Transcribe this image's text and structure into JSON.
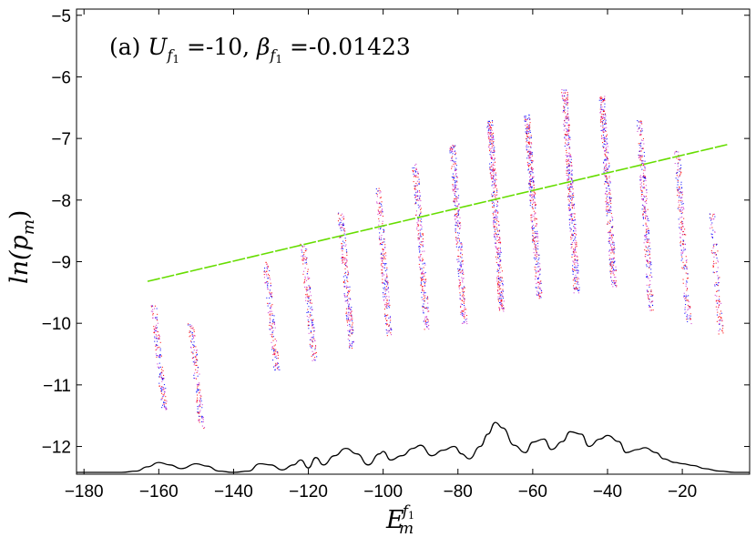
{
  "chart_data": {
    "type": "scatter",
    "annotation": {
      "prefix": "(a) ",
      "u_symbol": "U",
      "beta_symbol": "β",
      "subscript": "f",
      "sub_index": "1",
      "u_value": " =-10, ",
      "beta_value": " =-0.01423"
    },
    "xlabel": {
      "base": "E",
      "sub": "m",
      "sup_base": "f",
      "sup_index": "1"
    },
    "ylabel": "ln(p",
    "ylabel_sub": "m",
    "ylabel_close": ")",
    "xlim": [
      -182,
      -2
    ],
    "ylim": [
      -12.45,
      -4.9
    ],
    "xticks": [
      -180,
      -160,
      -140,
      -120,
      -100,
      -80,
      -60,
      -40,
      -20
    ],
    "yticks": [
      -5,
      -6,
      -7,
      -8,
      -9,
      -10,
      -11,
      -12
    ],
    "grid": false,
    "colors": {
      "red": "#ff0000",
      "blue": "#0000ff",
      "magenta": "#cc33cc",
      "fit_line": "#66dd00",
      "envelope": "#000000"
    },
    "scatter_bands": [
      {
        "x_center": -160,
        "y_top": -9.7,
        "y_bottom": -11.4,
        "slope_dx": 3.0,
        "density": 160
      },
      {
        "x_center": -150,
        "y_top": -10.0,
        "y_bottom": -11.7,
        "slope_dx": 3.0,
        "density": 140
      },
      {
        "x_center": -130,
        "y_top": -9.0,
        "y_bottom": -10.8,
        "slope_dx": 3.0,
        "density": 150
      },
      {
        "x_center": -120,
        "y_top": -8.7,
        "y_bottom": -10.6,
        "slope_dx": 3.0,
        "density": 170
      },
      {
        "x_center": -110,
        "y_top": -8.2,
        "y_bottom": -10.4,
        "slope_dx": 3.0,
        "density": 220
      },
      {
        "x_center": -100,
        "y_top": -7.8,
        "y_bottom": -10.2,
        "slope_dx": 3.0,
        "density": 220
      },
      {
        "x_center": -90,
        "y_top": -7.4,
        "y_bottom": -10.1,
        "slope_dx": 3.2,
        "density": 260
      },
      {
        "x_center": -80,
        "y_top": -7.1,
        "y_bottom": -10.0,
        "slope_dx": 3.2,
        "density": 300
      },
      {
        "x_center": -70,
        "y_top": -6.7,
        "y_bottom": -9.8,
        "slope_dx": 3.3,
        "density": 420
      },
      {
        "x_center": -60,
        "y_top": -6.6,
        "y_bottom": -9.6,
        "slope_dx": 3.3,
        "density": 380
      },
      {
        "x_center": -50,
        "y_top": -6.2,
        "y_bottom": -9.5,
        "slope_dx": 3.3,
        "density": 420
      },
      {
        "x_center": -40,
        "y_top": -6.3,
        "y_bottom": -9.4,
        "slope_dx": 3.3,
        "density": 380
      },
      {
        "x_center": -30,
        "y_top": -6.7,
        "y_bottom": -9.8,
        "slope_dx": 3.2,
        "density": 300
      },
      {
        "x_center": -20,
        "y_top": -7.2,
        "y_bottom": -10.0,
        "slope_dx": 3.0,
        "density": 220
      },
      {
        "x_center": -11,
        "y_top": -8.2,
        "y_bottom": -10.2,
        "slope_dx": 2.5,
        "density": 120
      }
    ],
    "fit_line": {
      "x": [
        -163,
        -8
      ],
      "y": [
        -9.32,
        -7.1
      ]
    },
    "envelope": {
      "x": [
        -182,
        -170,
        -166,
        -163,
        -160,
        -157,
        -154,
        -150,
        -147,
        -144,
        -140,
        -136,
        -133,
        -130,
        -127,
        -124,
        -122,
        -120,
        -118,
        -116,
        -113,
        -110,
        -107,
        -104,
        -101,
        -100,
        -98,
        -95,
        -92,
        -90,
        -87,
        -84,
        -81,
        -79,
        -77,
        -74,
        -72,
        -70,
        -68,
        -65,
        -62,
        -60,
        -57,
        -55,
        -52,
        -50,
        -47,
        -45,
        -42,
        -40,
        -37,
        -35,
        -32,
        -30,
        -27,
        -25,
        -22,
        -20,
        -17,
        -14,
        -10,
        -6,
        -2
      ],
      "y": [
        -12.42,
        -12.42,
        -12.4,
        -12.33,
        -12.26,
        -12.3,
        -12.36,
        -12.28,
        -12.32,
        -12.4,
        -12.42,
        -12.4,
        -12.28,
        -12.3,
        -12.38,
        -12.3,
        -12.22,
        -12.35,
        -12.18,
        -12.3,
        -12.15,
        -12.03,
        -12.12,
        -12.3,
        -12.12,
        -12.08,
        -12.22,
        -12.15,
        -12.03,
        -11.98,
        -12.15,
        -12.06,
        -12.0,
        -12.12,
        -12.2,
        -12.0,
        -11.8,
        -11.61,
        -11.7,
        -11.98,
        -12.1,
        -11.93,
        -11.88,
        -12.05,
        -11.92,
        -11.76,
        -11.8,
        -12.0,
        -11.88,
        -11.82,
        -11.92,
        -12.1,
        -12.05,
        -12.02,
        -12.1,
        -12.2,
        -12.26,
        -12.28,
        -12.31,
        -12.36,
        -12.4,
        -12.42,
        -12.42
      ]
    }
  }
}
